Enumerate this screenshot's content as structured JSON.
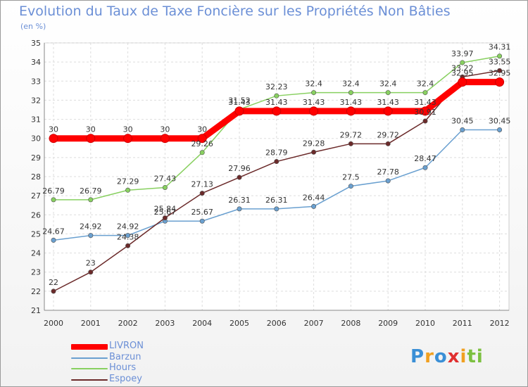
{
  "chart_data": {
    "type": "line",
    "title": "Evolution du Taux de Taxe Foncière sur les Propriétés Non Bâties",
    "ylabel": "(en %)",
    "xlabel": "",
    "ylim": [
      21,
      35
    ],
    "yticks": [
      21,
      22,
      23,
      24,
      25,
      26,
      27,
      28,
      29,
      30,
      31,
      32,
      33,
      34,
      35
    ],
    "grid": true,
    "legend_position": "bottom-left",
    "categories": [
      "2000",
      "2001",
      "2002",
      "2003",
      "2004",
      "2005",
      "2006",
      "2007",
      "2008",
      "2009",
      "2010",
      "2011",
      "2012"
    ],
    "series": [
      {
        "name": "LIVRON",
        "color": "#ff0000",
        "values": [
          30,
          30,
          30,
          30,
          30,
          31.43,
          31.43,
          31.43,
          31.43,
          31.43,
          31.43,
          32.95,
          32.95
        ],
        "labels": [
          "30",
          "30",
          "30",
          "30",
          "30",
          "31.43",
          "31.43",
          "31.43",
          "31.43",
          "31.43",
          "31.43",
          "32.95",
          "32.95"
        ]
      },
      {
        "name": "Barzun",
        "color": "#6aa0d0",
        "values": [
          24.67,
          24.92,
          24.92,
          25.67,
          25.67,
          26.31,
          26.31,
          26.44,
          27.5,
          27.78,
          28.47,
          30.45,
          30.45
        ],
        "labels": [
          "24.67",
          "24.92",
          "24.92",
          "25.67",
          "25.67",
          "26.31",
          "26.31",
          "26.44",
          "27.5",
          "27.78",
          "28.47",
          "30.45",
          "30.45"
        ]
      },
      {
        "name": "Hours",
        "color": "#88d060",
        "values": [
          26.79,
          26.79,
          27.29,
          27.43,
          29.26,
          31.52,
          32.23,
          32.4,
          32.4,
          32.4,
          32.4,
          33.97,
          34.31
        ],
        "labels": [
          "26.79",
          "26.79",
          "27.29",
          "27.43",
          "29.26",
          "31.52",
          "32.23",
          "32.4",
          "32.4",
          "32.4",
          "32.4",
          "33.97",
          "34.31"
        ]
      },
      {
        "name": "Espoey",
        "color": "#6b2a2a",
        "values": [
          22,
          23,
          24.38,
          25.84,
          27.13,
          27.96,
          28.79,
          29.28,
          29.72,
          29.72,
          30.91,
          33.22,
          33.55
        ],
        "labels": [
          "22",
          "23",
          "24.38",
          "25.84",
          "27.13",
          "27.96",
          "28.79",
          "29.28",
          "29.72",
          "29.72",
          "30.91",
          "33.22",
          "33.55"
        ]
      }
    ]
  },
  "brand": {
    "letters": [
      "P",
      "r",
      "o",
      "x",
      "i",
      "ti"
    ]
  }
}
